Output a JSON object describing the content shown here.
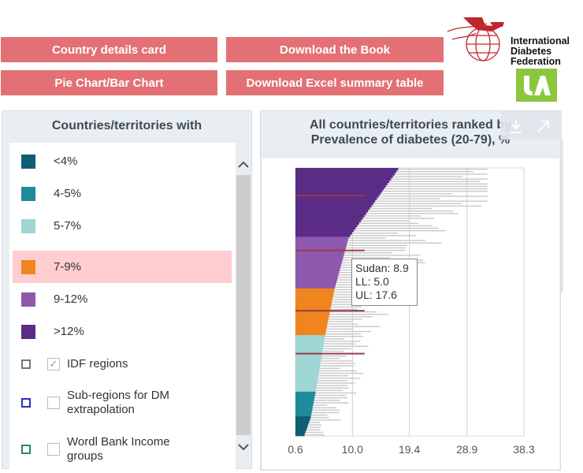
{
  "buttons": {
    "country_details": "Country details card",
    "download_book": "Download the Book",
    "pie_bar": "Pie Chart/Bar Chart",
    "download_excel": "Download Excel summary table"
  },
  "logo": {
    "line1": "International",
    "line2": "Diabetes",
    "line3": "Federation"
  },
  "legend": {
    "title": "Countries/territories with",
    "items": [
      {
        "label": "<4%",
        "color": "#0e5e74"
      },
      {
        "label": "4-5%",
        "color": "#1f8b9a"
      },
      {
        "label": "5-7%",
        "color": "#9fd5d3"
      },
      {
        "label": "7-9%",
        "color": "#f0851f"
      },
      {
        "label": "9-12%",
        "color": "#8e59ad"
      },
      {
        "label": ">12%",
        "color": "#5b2c86"
      }
    ],
    "active_index": 3,
    "groups": [
      {
        "label": "IDF regions",
        "outline": "#777777",
        "checked": true
      },
      {
        "label": "Sub-regions for DM extrapolation",
        "outline": "#2a2acc",
        "checked": false
      },
      {
        "label": "Wordl Bank Income groups",
        "outline": "#2e8b57",
        "checked": false
      }
    ]
  },
  "chart": {
    "title_line1": "All countries/territories ranked by",
    "title_line2": "Prevalence of diabetes (20-79), %",
    "tooltip": {
      "line1": "Sudan: 8.9",
      "line2": "LL: 5.0",
      "line3": "UL: 17.6"
    }
  },
  "chart_data": {
    "type": "bar",
    "orientation": "horizontal",
    "x_ticks": [
      "0.6",
      "10.0",
      "19.4",
      "28.9",
      "38.3"
    ],
    "xlim": [
      0.6,
      38.3
    ],
    "grid": true,
    "bands": [
      {
        "label": ">12%",
        "color": "#5b2c86",
        "count": 28,
        "max": 22.5
      },
      {
        "label": "9-12%",
        "color": "#8e59ad",
        "count": 21,
        "max": 12.0
      },
      {
        "label": "7-9%",
        "color": "#f0851f",
        "count": 19,
        "max": 9.0
      },
      {
        "label": "5-7%",
        "color": "#9fd5d3",
        "count": 23,
        "max": 7.0
      },
      {
        "label": "4-5%",
        "color": "#1f8b9a",
        "count": 10,
        "max": 5.0
      },
      {
        "label": "<4%",
        "color": "#0e5e74",
        "count": 8,
        "max": 4.0
      }
    ],
    "highlight": {
      "label": "Sudan",
      "value": 8.9,
      "ll": 5.0,
      "ul": 17.6
    }
  }
}
